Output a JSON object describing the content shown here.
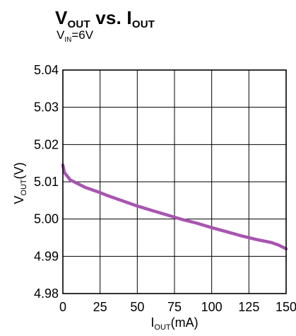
{
  "title": {
    "main_v": "V",
    "main_v_sub": "OUT",
    "vs": " vs. ",
    "main_i": "I",
    "main_i_sub": "OUT"
  },
  "subtitle": {
    "v": "V",
    "v_sub": "IN",
    "rest": "=6V"
  },
  "chart_data": {
    "type": "line",
    "title": "VOUT vs. IOUT",
    "subtitle": "VIN=6V",
    "xlabel": "IOUT(mA)",
    "ylabel": "VOUT(V)",
    "xlim": [
      0,
      150
    ],
    "ylim": [
      4.98,
      5.04
    ],
    "grid": true,
    "x_ticks": [
      "0",
      "25",
      "50",
      "75",
      "100",
      "125",
      "150"
    ],
    "y_ticks": [
      "4.98",
      "4.99",
      "5.00",
      "5.01",
      "5.02",
      "5.03",
      "5.04"
    ],
    "line_color": "#a855b0",
    "series": [
      {
        "x": [
          0,
          1,
          2,
          5,
          10,
          15,
          20,
          25,
          30,
          40,
          50,
          60,
          70,
          80,
          90,
          100,
          110,
          120,
          130,
          140,
          145,
          150
        ],
        "y": [
          5.0145,
          5.0125,
          5.012,
          5.0105,
          5.0095,
          5.0085,
          5.0078,
          5.0071,
          5.0063,
          5.0049,
          5.0035,
          5.0023,
          5.0011,
          4.9999,
          4.9989,
          4.9977,
          4.9966,
          4.9955,
          4.9945,
          4.9937,
          4.993,
          4.992
        ]
      }
    ]
  }
}
